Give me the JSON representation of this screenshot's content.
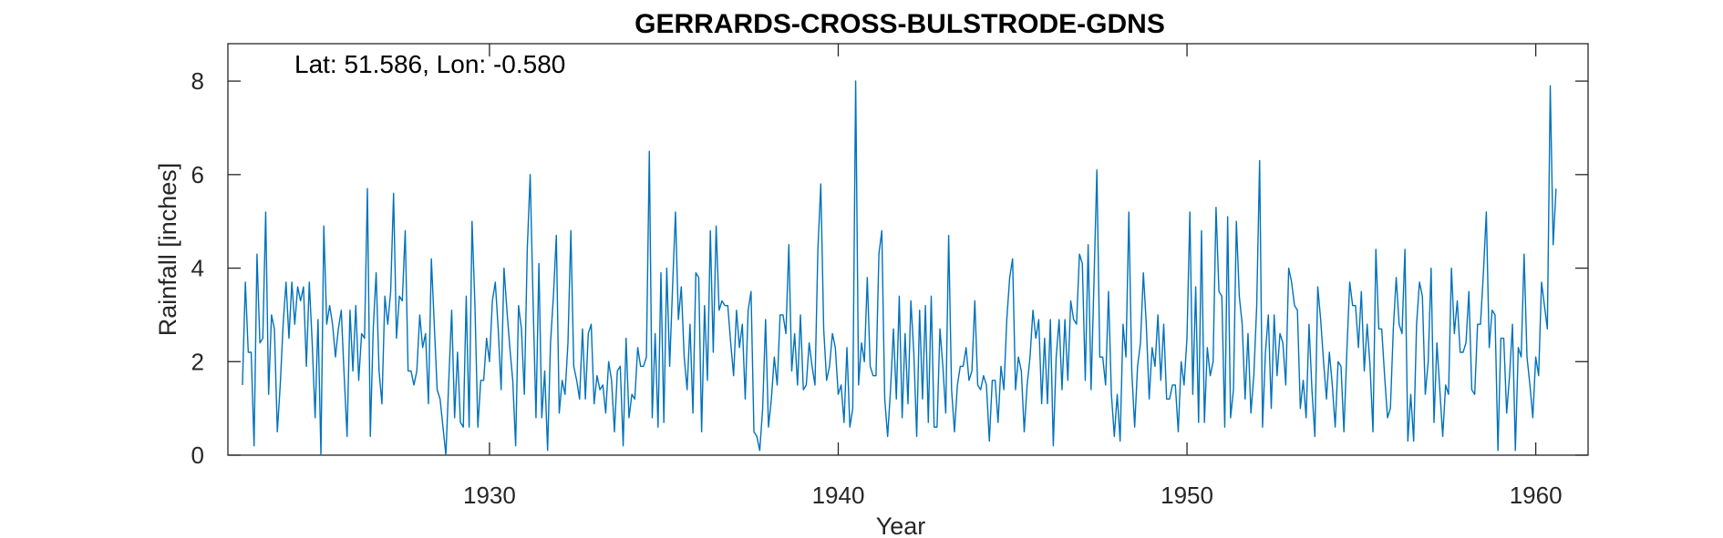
{
  "chart_data": {
    "type": "line",
    "title": "GERRARDS-CROSS-BULSTRODE-GDNS",
    "xlabel": "Year",
    "ylabel": "Rainfall [inches]",
    "annotation": "Lat: 51.586, Lon: -0.580",
    "xlim": [
      1922.5,
      1961.5
    ],
    "ylim": [
      0,
      8.8
    ],
    "xticks": [
      1930,
      1940,
      1950,
      1960
    ],
    "yticks": [
      0,
      2,
      4,
      6,
      8
    ],
    "grid": false,
    "color": "#0072BD",
    "series": [
      {
        "x_start": 1922.917,
        "x_step": 0.08333,
        "values": [
          1.5,
          3.7,
          2.2,
          2.2,
          0.2,
          4.3,
          2.4,
          2.5,
          5.2,
          1.3,
          3.0,
          2.7,
          0.5,
          1.5,
          2.8,
          3.7,
          2.5,
          3.7,
          2.8,
          3.6,
          3.3,
          3.6,
          1.9,
          3.7,
          2.4,
          0.8,
          2.9,
          0.0,
          4.9,
          2.8,
          3.2,
          2.8,
          2.1,
          2.7,
          3.1,
          1.7,
          0.4,
          3.1,
          1.8,
          3.2,
          1.6,
          2.6,
          2.5,
          5.7,
          0.4,
          2.7,
          3.9,
          1.8,
          1.1,
          3.4,
          2.8,
          3.5,
          5.6,
          2.5,
          3.4,
          3.3,
          4.8,
          1.8,
          1.8,
          1.5,
          1.8,
          3.0,
          2.3,
          2.6,
          1.1,
          4.2,
          2.8,
          1.4,
          1.2,
          0.6,
          0.0,
          1.6,
          3.1,
          0.8,
          2.2,
          0.7,
          0.6,
          3.4,
          0.6,
          5.0,
          3.2,
          0.6,
          1.6,
          1.6,
          2.5,
          2.0,
          3.3,
          3.7,
          2.7,
          1.4,
          4.0,
          3.1,
          2.3,
          1.6,
          0.2,
          3.2,
          2.7,
          1.3,
          4.4,
          6.0,
          3.3,
          0.8,
          4.1,
          0.8,
          1.8,
          0.1,
          2.4,
          3.4,
          4.7,
          0.9,
          1.6,
          1.3,
          2.4,
          4.8,
          1.9,
          1.6,
          1.2,
          2.7,
          1.2,
          2.6,
          2.8,
          1.1,
          1.7,
          1.4,
          1.5,
          0.9,
          2.0,
          1.6,
          0.5,
          1.8,
          1.9,
          0.2,
          2.5,
          0.8,
          1.3,
          1.2,
          2.3,
          1.9,
          1.9,
          2.1,
          6.5,
          0.8,
          2.6,
          0.6,
          3.9,
          0.7,
          4.0,
          1.9,
          3.6,
          5.2,
          2.9,
          3.6,
          2.1,
          1.4,
          2.8,
          0.9,
          3.9,
          3.8,
          0.5,
          3.2,
          1.6,
          4.8,
          2.2,
          4.9,
          3.1,
          3.3,
          3.2,
          3.2,
          2.4,
          1.7,
          3.1,
          2.3,
          2.8,
          1.2,
          3.1,
          3.5,
          0.5,
          0.4,
          0.1,
          1.0,
          2.9,
          0.6,
          1.2,
          2.1,
          1.5,
          3.0,
          3.0,
          2.6,
          4.5,
          1.8,
          2.6,
          1.5,
          3.0,
          1.4,
          1.5,
          2.4,
          1.9,
          1.5,
          4.4,
          5.8,
          2.7,
          1.6,
          1.9,
          2.6,
          2.3,
          1.3,
          1.5,
          0.7,
          2.3,
          0.6,
          1.0,
          8.0,
          1.5,
          2.4,
          2.0,
          3.8,
          1.9,
          1.7,
          1.7,
          4.3,
          4.8,
          1.2,
          0.4,
          1.4,
          2.7,
          1.2,
          3.4,
          0.8,
          2.6,
          1.1,
          3.3,
          2.2,
          0.4,
          3.1,
          1.2,
          3.2,
          0.7,
          3.4,
          0.6,
          0.6,
          2.7,
          1.9,
          0.9,
          4.7,
          1.4,
          0.5,
          1.5,
          1.9,
          1.9,
          2.3,
          1.6,
          1.8,
          3.3,
          1.5,
          1.4,
          1.7,
          1.5,
          0.3,
          1.6,
          1.6,
          0.7,
          1.9,
          1.4,
          2.9,
          3.8,
          4.2,
          1.4,
          2.1,
          1.8,
          0.5,
          1.5,
          2.1,
          3.1,
          2.5,
          2.9,
          1.1,
          2.5,
          1.1,
          2.9,
          0.2,
          2.1,
          2.9,
          1.4,
          2.9,
          1.6,
          3.3,
          2.9,
          2.8,
          4.3,
          4.1,
          1.6,
          4.5,
          1.4,
          3.7,
          6.1,
          2.1,
          2.1,
          1.5,
          3.5,
          1.3,
          0.4,
          1.3,
          0.3,
          2.8,
          2.1,
          5.2,
          1.8,
          0.6,
          1.9,
          2.4,
          3.9,
          2.8,
          1.2,
          2.3,
          1.9,
          3.0,
          1.6,
          2.8,
          1.2,
          1.2,
          1.5,
          1.5,
          0.5,
          2.0,
          1.5,
          2.5,
          5.2,
          1.3,
          3.6,
          0.7,
          4.8,
          0.7,
          2.3,
          1.7,
          2.0,
          5.3,
          3.5,
          3.4,
          0.6,
          5.1,
          0.8,
          1.4,
          5.0,
          3.4,
          2.8,
          1.2,
          2.6,
          0.9,
          1.7,
          3.2,
          6.3,
          0.6,
          2.2,
          3.0,
          1.0,
          3.0,
          1.7,
          2.6,
          2.4,
          1.5,
          4.0,
          3.7,
          3.2,
          3.1,
          1.0,
          1.6,
          0.8,
          2.8,
          1.4,
          0.4,
          3.6,
          2.9,
          2.0,
          1.2,
          2.2,
          1.5,
          0.6,
          2.0,
          1.9,
          0.5,
          2.2,
          3.7,
          3.2,
          3.2,
          2.3,
          3.5,
          1.8,
          2.8,
          1.9,
          0.5,
          4.4,
          2.7,
          2.7,
          1.7,
          0.8,
          1.0,
          2.7,
          3.8,
          2.8,
          2.6,
          4.4,
          0.3,
          1.3,
          0.3,
          2.8,
          3.7,
          3.4,
          1.3,
          2.0,
          4.0,
          0.7,
          2.4,
          1.4,
          0.4,
          1.5,
          1.3,
          4.0,
          2.6,
          3.3,
          2.2,
          2.2,
          2.4,
          3.5,
          1.4,
          1.3,
          2.8,
          2.8,
          3.9,
          5.2,
          2.3,
          3.1,
          3.0,
          0.1,
          2.5,
          2.5,
          0.9,
          1.7,
          2.8,
          0.1,
          2.3,
          2.1,
          4.3,
          2.1,
          1.5,
          0.8,
          2.1,
          1.7,
          3.7,
          3.2,
          2.7,
          7.9,
          4.5,
          5.7
        ]
      }
    ]
  }
}
